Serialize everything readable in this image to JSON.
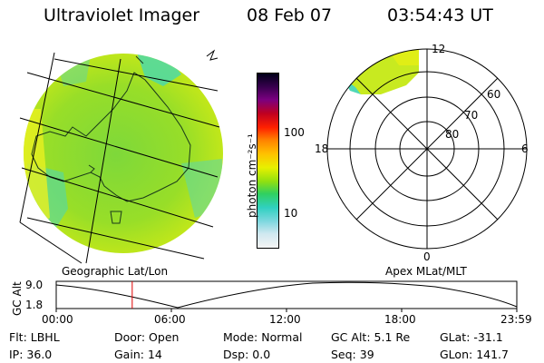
{
  "header": {
    "title": "Ultraviolet Imager",
    "date": "08 Feb 07",
    "time": "03:54:43 UT"
  },
  "left_panel": {
    "caption": "Geographic Lat/Lon"
  },
  "color_scale": {
    "axis_label": "photon cm⁻²s⁻¹",
    "ticks": [
      "100",
      "10"
    ],
    "colors": [
      "#000018",
      "#3a0050",
      "#7a0080",
      "#c00020",
      "#ff2000",
      "#ff8000",
      "#ffc000",
      "#e8f000",
      "#90e010",
      "#30d060",
      "#30d0c0",
      "#80d8e0",
      "#d0e8f0",
      "#f4f4f4"
    ]
  },
  "polar_panel": {
    "caption": "Apex MLat/MLT",
    "mlt_labels": {
      "top": "12",
      "left": "18",
      "right": "6",
      "bottom": "0"
    },
    "mlat_labels": [
      "60",
      "70",
      "80"
    ]
  },
  "altitude_strip": {
    "ylabel": "GC Alt",
    "yticks": [
      "9.0",
      "1.8"
    ],
    "xticks": [
      "00:00",
      "06:00",
      "12:00",
      "18:00",
      "23:59"
    ],
    "marker_fraction": 0.165
  },
  "info": {
    "row1": [
      {
        "label": "Flt:",
        "value": "LBHL"
      },
      {
        "label": "Door:",
        "value": "Open"
      },
      {
        "label": "Mode:",
        "value": "Normal"
      },
      {
        "label": "GC Alt:",
        "value": "5.1 Re"
      },
      {
        "label": "GLat:",
        "value": "-31.1"
      }
    ],
    "row2": [
      {
        "label": "IP:",
        "value": "36.0"
      },
      {
        "label": "Gain:",
        "value": "14"
      },
      {
        "label": "Dsp:",
        "value": "0.0"
      },
      {
        "label": "Seq:",
        "value": "39"
      },
      {
        "label": "GLon:",
        "value": "141.7"
      }
    ]
  }
}
